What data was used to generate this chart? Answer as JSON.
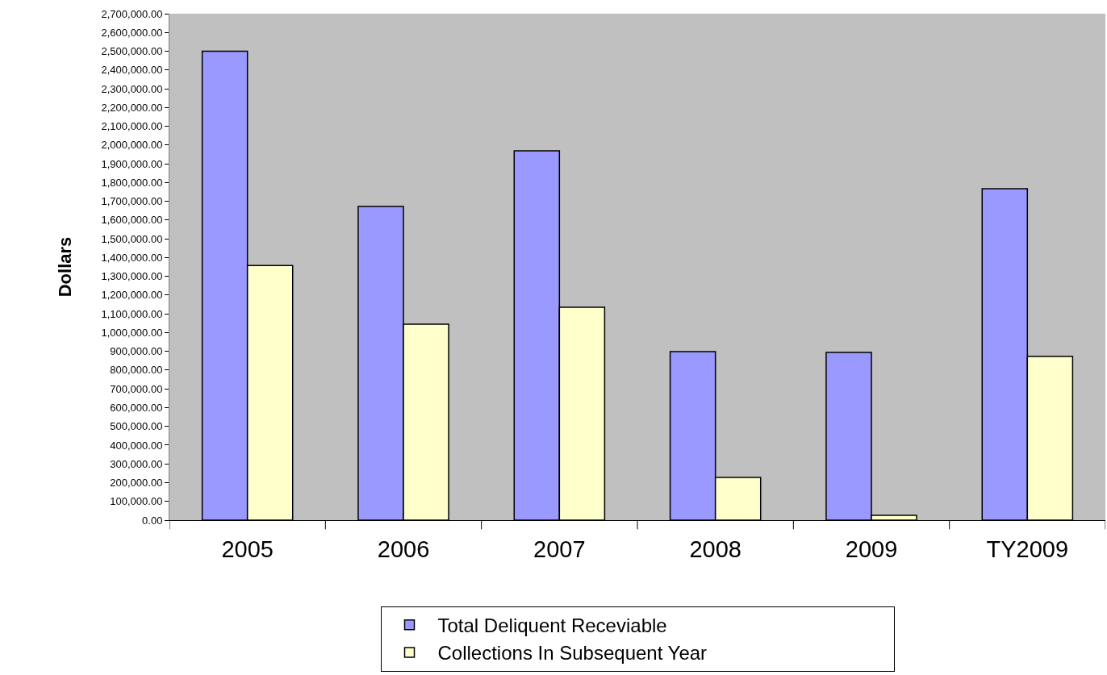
{
  "chart_data": {
    "type": "bar",
    "ylabel": "Dollars",
    "categories": [
      "2005",
      "2006",
      "2007",
      "2008",
      "2009",
      "TY2009"
    ],
    "series": [
      {
        "name": "Total Deliquent Receviable",
        "color": "#9999ff",
        "values": [
          2500000,
          1672000,
          1969000,
          899000,
          894000,
          1767000
        ]
      },
      {
        "name": "Collections In Subsequent Year",
        "color": "#ffffcc",
        "values": [
          1358000,
          1045000,
          1135000,
          228000,
          26000,
          873000
        ]
      }
    ],
    "ylim": [
      0,
      2700000
    ],
    "yticks": [
      {
        "value": 0,
        "label": "0.00"
      },
      {
        "value": 100000,
        "label": "100,000.00"
      },
      {
        "value": 200000,
        "label": "200,000.00"
      },
      {
        "value": 300000,
        "label": "300,000.00"
      },
      {
        "value": 400000,
        "label": "400,000.00"
      },
      {
        "value": 500000,
        "label": "500,000.00"
      },
      {
        "value": 600000,
        "label": "600,000.00"
      },
      {
        "value": 700000,
        "label": "700,000.00"
      },
      {
        "value": 800000,
        "label": "800,000.00"
      },
      {
        "value": 900000,
        "label": "900,000.00"
      },
      {
        "value": 1000000,
        "label": "1,000,000.00"
      },
      {
        "value": 1100000,
        "label": "1,100,000.00"
      },
      {
        "value": 1200000,
        "label": "1,200,000.00"
      },
      {
        "value": 1300000,
        "label": "1,300,000.00"
      },
      {
        "value": 1400000,
        "label": "1,400,000.00"
      },
      {
        "value": 1500000,
        "label": "1,500,000.00"
      },
      {
        "value": 1600000,
        "label": "1,600,000.00"
      },
      {
        "value": 1700000,
        "label": "1,700,000.00"
      },
      {
        "value": 1800000,
        "label": "1,800,000.00"
      },
      {
        "value": 1900000,
        "label": "1,900,000.00"
      },
      {
        "value": 2000000,
        "label": "2,000,000.00"
      },
      {
        "value": 2100000,
        "label": "2,100,000.00"
      },
      {
        "value": 2200000,
        "label": "2,200,000.00"
      },
      {
        "value": 2300000,
        "label": "2,300,000.00"
      },
      {
        "value": 2400000,
        "label": "2,400,000.00"
      },
      {
        "value": 2500000,
        "label": "2,500,000.00"
      },
      {
        "value": 2600000,
        "label": "2,600,000.00"
      },
      {
        "value": 2700000,
        "label": "2,700,000.00"
      }
    ],
    "grid": false,
    "legend": "bottom"
  }
}
